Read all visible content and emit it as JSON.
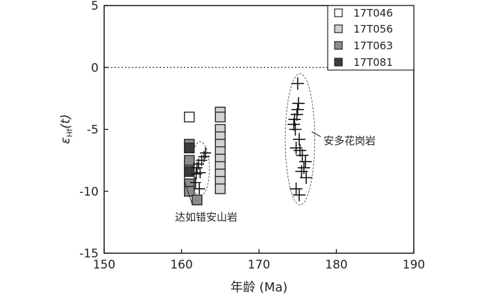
{
  "chart_data": {
    "type": "scatter",
    "title": "",
    "xlabel": "年龄 (Ma)",
    "ylabel": {
      "base": "ε",
      "sub": "Hf",
      "suffix": "(t)"
    },
    "xlim": [
      150,
      190
    ],
    "ylim": [
      -15,
      5
    ],
    "xticks": [
      150,
      160,
      170,
      180,
      190
    ],
    "yticks": [
      5,
      0,
      -5,
      -10,
      -15
    ],
    "reference_line": {
      "y": 0,
      "style": "dotted"
    },
    "legend": {
      "position": "top-right",
      "entries": [
        "17T046",
        "17T056",
        "17T063",
        "17T081"
      ]
    },
    "series": [
      {
        "name": "17T046",
        "marker": "square",
        "fill": "#ffffff",
        "points": [
          [
            161,
            -4.0
          ],
          [
            161,
            -8.7
          ]
        ]
      },
      {
        "name": "17T056",
        "marker": "square",
        "fill": "#d2d2d2",
        "points": [
          [
            161,
            -8.0
          ],
          [
            165,
            -3.6
          ],
          [
            165,
            -4.0
          ],
          [
            165,
            -5.0
          ],
          [
            165,
            -5.6
          ],
          [
            165,
            -6.2
          ],
          [
            165,
            -6.8
          ],
          [
            165,
            -7.4
          ],
          [
            165,
            -8.0
          ],
          [
            165,
            -8.6
          ],
          [
            165,
            -9.2
          ],
          [
            165,
            -9.8
          ]
        ]
      },
      {
        "name": "17T063",
        "marker": "square",
        "fill": "#8c8c8c",
        "points": [
          [
            161,
            -6.2
          ],
          [
            161,
            -7.5
          ],
          [
            161,
            -9.4
          ],
          [
            161,
            -10.0
          ],
          [
            162,
            -10.7
          ]
        ]
      },
      {
        "name": "17T081",
        "marker": "square",
        "fill": "#3c3c3c",
        "points": [
          [
            161,
            -6.5
          ],
          [
            161,
            -8.4
          ]
        ]
      },
      {
        "name": "达如错安山岩",
        "marker": "plus",
        "points": [
          [
            161.8,
            -9.3
          ],
          [
            161.9,
            -8.6
          ],
          [
            162.0,
            -8.1
          ],
          [
            162.2,
            -7.8
          ],
          [
            162.4,
            -8.5
          ],
          [
            162.6,
            -7.5
          ],
          [
            162.9,
            -7.2
          ],
          [
            163.1,
            -6.9
          ],
          [
            162.3,
            -9.8
          ]
        ]
      },
      {
        "name": "安多花岗岩",
        "marker": "plus",
        "points": [
          [
            175.0,
            -1.3
          ],
          [
            175.1,
            -2.9
          ],
          [
            175.0,
            -3.4
          ],
          [
            174.9,
            -3.8
          ],
          [
            174.6,
            -4.2
          ],
          [
            174.5,
            -4.6
          ],
          [
            174.7,
            -5.0
          ],
          [
            175.2,
            -5.8
          ],
          [
            174.8,
            -6.5
          ],
          [
            175.3,
            -6.7
          ],
          [
            175.6,
            -7.1
          ],
          [
            176.0,
            -7.6
          ],
          [
            175.8,
            -8.1
          ],
          [
            175.5,
            -8.4
          ],
          [
            176.1,
            -8.9
          ],
          [
            174.8,
            -9.8
          ],
          [
            175.2,
            -10.3
          ]
        ]
      }
    ],
    "annotations": [
      {
        "text": "达如错安山岩",
        "group": "andesite",
        "ellipse_center": [
          162.4,
          -8.2
        ],
        "ellipse_radii": [
          1.2,
          2.2
        ]
      },
      {
        "text": "安多花岗岩",
        "group": "granite",
        "ellipse_center": [
          175.3,
          -5.8
        ],
        "ellipse_radii": [
          1.9,
          5.3
        ]
      }
    ]
  }
}
